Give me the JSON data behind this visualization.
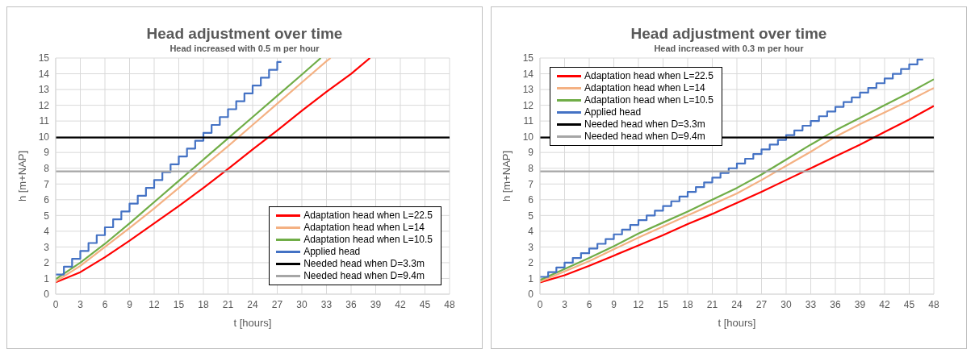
{
  "chart_data": [
    {
      "type": "line",
      "title": "Head adjustment over time",
      "subtitle": "Head increased with 0.5 m per hour",
      "xlabel": "t [hours]",
      "ylabel": "h [m+NAP]",
      "xlim": [
        0,
        48
      ],
      "xticks": [
        0,
        3,
        6,
        9,
        12,
        15,
        18,
        21,
        24,
        27,
        30,
        33,
        36,
        39,
        42,
        45,
        48
      ],
      "ylim": [
        0,
        15
      ],
      "yticks": [
        0,
        1,
        2,
        3,
        4,
        5,
        6,
        7,
        8,
        9,
        10,
        11,
        12,
        13,
        14,
        15
      ],
      "grid": true,
      "legend": "bottom right",
      "series": [
        {
          "name": "Adaptation head when L=22.5",
          "color": "#ff0000",
          "x": [
            0,
            3,
            6,
            9,
            12,
            15,
            18,
            21,
            24,
            27,
            30,
            33,
            36,
            38.3
          ],
          "values": [
            0.75,
            1.4,
            2.35,
            3.4,
            4.5,
            5.6,
            6.75,
            7.95,
            9.2,
            10.4,
            11.65,
            12.85,
            14.0,
            15
          ]
        },
        {
          "name": "Adaptation head when L=14",
          "color": "#f4b183",
          "x": [
            0,
            3,
            6,
            9,
            12,
            15,
            18,
            21,
            24,
            27,
            30,
            33,
            33.5
          ],
          "values": [
            0.8,
            1.8,
            3.0,
            4.2,
            5.45,
            6.75,
            8.1,
            9.4,
            10.75,
            12.1,
            13.45,
            14.8,
            15
          ]
        },
        {
          "name": "Adaptation head when L=10.5",
          "color": "#70ad47",
          "x": [
            0,
            3,
            6,
            9,
            12,
            15,
            18,
            21,
            24,
            27,
            30,
            32.3
          ],
          "values": [
            0.95,
            2.0,
            3.2,
            4.5,
            5.85,
            7.2,
            8.55,
            9.9,
            11.25,
            12.6,
            13.95,
            15
          ]
        },
        {
          "name": "Applied head",
          "type": "step",
          "color": "#4472c4",
          "x": [
            0,
            1,
            2,
            3,
            4,
            5,
            6,
            7,
            8,
            9,
            10,
            11,
            12,
            13,
            14,
            15,
            16,
            17,
            18,
            19,
            20,
            21,
            22,
            23,
            24,
            25,
            26,
            27,
            27.5
          ],
          "values": [
            1.25,
            1.75,
            2.25,
            2.75,
            3.25,
            3.75,
            4.25,
            4.75,
            5.25,
            5.75,
            6.25,
            6.75,
            7.25,
            7.75,
            8.25,
            8.75,
            9.25,
            9.75,
            10.25,
            10.75,
            11.25,
            11.75,
            12.25,
            12.75,
            13.25,
            13.75,
            14.25,
            14.75,
            14.75
          ]
        },
        {
          "name": "Needed head when D=3.3m",
          "color": "#000000",
          "x": [
            0,
            48
          ],
          "values": [
            9.95,
            9.95
          ]
        },
        {
          "name": "Needed head when D=9.4m",
          "color": "#a6a6a6",
          "x": [
            0,
            48
          ],
          "values": [
            7.8,
            7.8
          ]
        }
      ]
    },
    {
      "type": "line",
      "title": "Head adjustment over time",
      "subtitle": "Head increased with 0.3 m per hour",
      "xlabel": "t [hours]",
      "ylabel": "h [m+NAP]",
      "xlim": [
        0,
        48
      ],
      "xticks": [
        0,
        3,
        6,
        9,
        12,
        15,
        18,
        21,
        24,
        27,
        30,
        33,
        36,
        39,
        42,
        45,
        48
      ],
      "ylim": [
        0,
        15
      ],
      "yticks": [
        0,
        1,
        2,
        3,
        4,
        5,
        6,
        7,
        8,
        9,
        10,
        11,
        12,
        13,
        14,
        15
      ],
      "grid": true,
      "legend": "top left",
      "series": [
        {
          "name": "Adaptation head when L=22.5",
          "color": "#ff0000",
          "x": [
            0,
            3,
            6,
            9,
            12,
            15,
            18,
            21,
            24,
            27,
            30,
            33,
            36,
            39,
            42,
            45,
            48
          ],
          "values": [
            0.75,
            1.2,
            1.8,
            2.45,
            3.1,
            3.75,
            4.45,
            5.1,
            5.8,
            6.5,
            7.25,
            8.0,
            8.75,
            9.5,
            10.3,
            11.1,
            11.95
          ]
        },
        {
          "name": "Adaptation head when L=14",
          "color": "#f4b183",
          "x": [
            0,
            3,
            6,
            9,
            12,
            15,
            18,
            21,
            24,
            27,
            30,
            33,
            36,
            39,
            42,
            45,
            48
          ],
          "values": [
            0.8,
            1.45,
            2.1,
            2.85,
            3.6,
            4.3,
            5.0,
            5.7,
            6.4,
            7.25,
            8.15,
            9.05,
            10.0,
            10.8,
            11.55,
            12.3,
            13.1
          ]
        },
        {
          "name": "Adaptation head when L=10.5",
          "color": "#70ad47",
          "x": [
            0,
            3,
            6,
            9,
            12,
            15,
            18,
            21,
            24,
            27,
            30,
            33,
            36,
            39,
            42,
            45,
            48
          ],
          "values": [
            0.9,
            1.6,
            2.3,
            3.05,
            3.85,
            4.55,
            5.25,
            6.0,
            6.75,
            7.6,
            8.55,
            9.5,
            10.4,
            11.2,
            12.0,
            12.8,
            13.65
          ]
        },
        {
          "name": "Applied head",
          "type": "step",
          "color": "#4472c4",
          "x": [
            0,
            1,
            2,
            3,
            4,
            5,
            6,
            7,
            8,
            9,
            10,
            11,
            12,
            13,
            14,
            15,
            16,
            17,
            18,
            19,
            20,
            21,
            22,
            23,
            24,
            25,
            26,
            27,
            28,
            29,
            30,
            31,
            32,
            33,
            34,
            35,
            36,
            37,
            38,
            39,
            40,
            41,
            42,
            43,
            44,
            45,
            46,
            46.7
          ],
          "values": [
            1.1,
            1.4,
            1.7,
            2.0,
            2.3,
            2.6,
            2.9,
            3.2,
            3.5,
            3.8,
            4.1,
            4.4,
            4.7,
            5.0,
            5.3,
            5.6,
            5.9,
            6.2,
            6.5,
            6.8,
            7.1,
            7.4,
            7.7,
            8.0,
            8.3,
            8.6,
            8.9,
            9.2,
            9.5,
            9.8,
            10.1,
            10.4,
            10.7,
            11.0,
            11.3,
            11.6,
            11.9,
            12.2,
            12.5,
            12.8,
            13.1,
            13.4,
            13.7,
            14.0,
            14.3,
            14.6,
            14.9,
            14.9
          ]
        },
        {
          "name": "Needed head when D=3.3m",
          "color": "#000000",
          "x": [
            0,
            48
          ],
          "values": [
            9.95,
            9.95
          ]
        },
        {
          "name": "Needed head when D=9.4m",
          "color": "#a6a6a6",
          "x": [
            0,
            48
          ],
          "values": [
            7.8,
            7.8
          ]
        }
      ]
    }
  ]
}
